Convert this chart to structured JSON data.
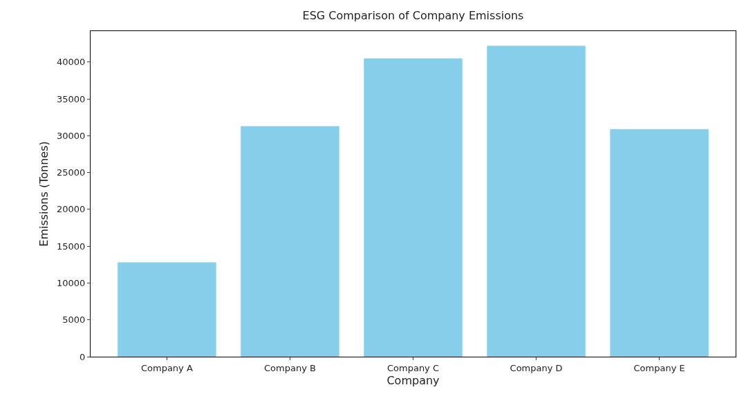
{
  "chart_data": {
    "type": "bar",
    "title": "ESG Comparison of Company Emissions",
    "xlabel": "Company",
    "ylabel": "Emissions (Tonnes)",
    "categories": [
      "Company A",
      "Company B",
      "Company C",
      "Company D",
      "Company E"
    ],
    "values": [
      12800,
      31300,
      40500,
      42200,
      30900
    ],
    "color": "#87ceeb",
    "ylim": [
      0,
      44200
    ],
    "yticks": [
      0,
      5000,
      10000,
      15000,
      20000,
      25000,
      30000,
      35000,
      40000
    ]
  }
}
